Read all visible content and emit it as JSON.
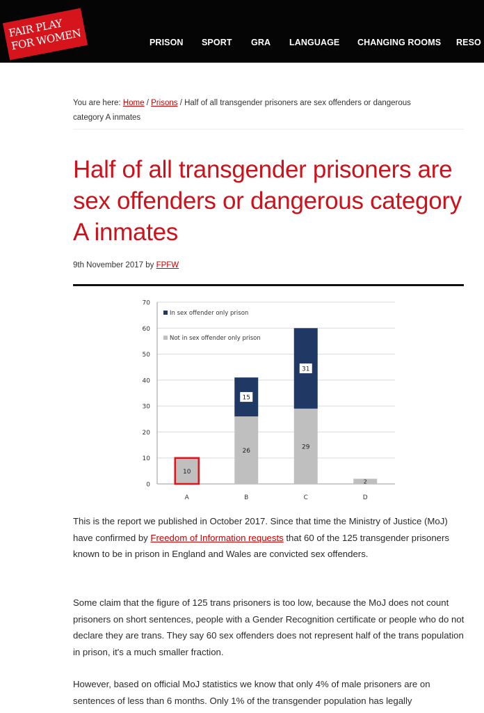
{
  "site": {
    "logo_line1": "FAIR PLAY",
    "logo_line2": "FOR WOMEN",
    "nav": [
      "PRISON",
      "SPORT",
      "GRA",
      "LANGUAGE",
      "CHANGING ROOMS",
      "RESO"
    ]
  },
  "breadcrumb": {
    "prefix": "You are here:",
    "home": "Home",
    "sep1": "/",
    "section": "Prisons",
    "sep2": "/",
    "current": "Half of all transgender prisoners are sex offenders or dangerous category A inmates"
  },
  "article": {
    "title": "Half of all transgender prisoners are sex offenders or dangerous category A inmates",
    "date": "9th November 2017",
    "by": "by",
    "author": "FPFW",
    "p1_a": "This is the report we published in October 2017.  Since that time the Ministry of Justice (MoJ) have confirmed by ",
    "p1_link": "Freedom of Information requests",
    "p1_b": " that 60 of the 125 transgender prisoners known to be in prison in England and Wales are convicted sex offenders.",
    "p2": "Some claim that the figure of 125 trans prisoners is too low, because the MoJ does not count prisoners on short sentences, people with a Gender Recognition certificate or people who do not declare they are trans. They say 60 sex offenders does not represent half of the trans population in prison, it's a much smaller fraction.",
    "p3": "However, based on official MoJ statistics we know that only 4% of male prisoners are on sentences of less than 6 months. Only 1% of the transgender population has legally"
  },
  "chart_data": {
    "type": "bar",
    "stacked": true,
    "categories": [
      "A",
      "B",
      "C",
      "D"
    ],
    "ylim": [
      0,
      70
    ],
    "yticks": [
      0,
      10,
      20,
      30,
      40,
      50,
      60,
      70
    ],
    "grid": true,
    "legend_position": "top-left",
    "series": [
      {
        "name": "Not in sex offender only prison",
        "color": "#bfbfbf",
        "values": [
          10,
          26,
          29,
          2
        ]
      },
      {
        "name": "In sex offender only prison",
        "color": "#1f3864",
        "values": [
          0,
          15,
          31,
          0
        ]
      }
    ],
    "highlight": {
      "category": "A",
      "color": "#e0151c"
    }
  },
  "colors": {
    "brand_red": "#cc121b",
    "topbar": "#050505",
    "link": "#cc0000"
  }
}
